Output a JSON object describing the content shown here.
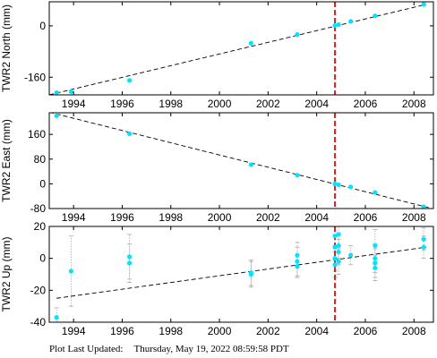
{
  "chart_data": [
    {
      "type": "scatter",
      "ylabel": "TWR2 North (mm)",
      "xlim": [
        1993.0,
        2008.8
      ],
      "ylim": [
        -215,
        75
      ],
      "x_ticks": [
        1994,
        1996,
        1998,
        2000,
        2002,
        2004,
        2006,
        2008
      ],
      "y_ticks": [
        0,
        -160
      ],
      "grid": false,
      "event_line_x": 2004.75,
      "trend": [
        [
          1993.0,
          -215
        ],
        [
          2008.5,
          67
        ]
      ],
      "points": [
        [
          1993.3,
          -208
        ],
        [
          1993.9,
          -205
        ],
        [
          1996.3,
          -170
        ],
        [
          2001.3,
          -54
        ],
        [
          2003.2,
          -27
        ],
        [
          2004.75,
          1
        ],
        [
          2004.9,
          4
        ],
        [
          2005.4,
          14
        ],
        [
          2006.4,
          31
        ],
        [
          2008.4,
          67
        ]
      ]
    },
    {
      "type": "scatter",
      "ylabel": "TWR2 East (mm)",
      "xlim": [
        1993.0,
        2008.8
      ],
      "ylim": [
        -80,
        230
      ],
      "x_ticks": [
        1994,
        1996,
        1998,
        2000,
        2002,
        2004,
        2006,
        2008
      ],
      "y_ticks": [
        160,
        80,
        0,
        -80
      ],
      "grid": false,
      "event_line_x": 2004.75,
      "trend": [
        [
          1993.0,
          232
        ],
        [
          2008.6,
          -77
        ]
      ],
      "points": [
        [
          1993.3,
          220
        ],
        [
          1996.3,
          162
        ],
        [
          2001.3,
          62
        ],
        [
          2003.2,
          28
        ],
        [
          2004.75,
          0
        ],
        [
          2004.9,
          -3
        ],
        [
          2005.4,
          -10
        ],
        [
          2006.4,
          -28
        ],
        [
          2008.4,
          -74
        ]
      ]
    },
    {
      "type": "scatter",
      "ylabel": "TWR2 Up (mm)",
      "xlim": [
        1993.0,
        2008.8
      ],
      "ylim": [
        -40,
        20
      ],
      "x_ticks": [
        1994,
        1996,
        1998,
        2000,
        2002,
        2004,
        2006,
        2008
      ],
      "y_ticks": [
        20,
        0,
        -20,
        -40
      ],
      "grid": false,
      "event_line_x": 2004.75,
      "trend": [
        [
          1993.3,
          -25
        ],
        [
          2008.5,
          7
        ]
      ],
      "points": [
        {
          "x": 1993.3,
          "y": -37,
          "err": 6
        },
        {
          "x": 1993.9,
          "y": -8,
          "err": 22
        },
        {
          "x": 1996.3,
          "y": 1,
          "err": 14
        },
        {
          "x": 1996.3,
          "y": -3,
          "err": 12
        },
        {
          "x": 2001.3,
          "y": -9,
          "err": 8
        },
        {
          "x": 2001.3,
          "y": -10,
          "err": 8
        },
        {
          "x": 2003.2,
          "y": -2,
          "err": 9
        },
        {
          "x": 2003.2,
          "y": 2,
          "err": 8
        },
        {
          "x": 2003.2,
          "y": -5,
          "err": 7
        },
        {
          "x": 2004.75,
          "y": 14,
          "err": 8
        },
        {
          "x": 2004.75,
          "y": 7,
          "err": 8
        },
        {
          "x": 2004.75,
          "y": 0,
          "err": 8
        },
        {
          "x": 2004.75,
          "y": -4,
          "err": 8
        },
        {
          "x": 2004.9,
          "y": 15,
          "err": 8
        },
        {
          "x": 2004.9,
          "y": 8,
          "err": 8
        },
        {
          "x": 2004.9,
          "y": 4,
          "err": 8
        },
        {
          "x": 2004.9,
          "y": -2,
          "err": 8
        },
        {
          "x": 2005.4,
          "y": 2,
          "err": 6
        },
        {
          "x": 2006.4,
          "y": 8,
          "err": 10
        },
        {
          "x": 2006.4,
          "y": 0,
          "err": 9
        },
        {
          "x": 2006.4,
          "y": -3,
          "err": 9
        },
        {
          "x": 2006.4,
          "y": -6,
          "err": 8
        },
        {
          "x": 2008.4,
          "y": 12,
          "err": 7
        },
        {
          "x": 2008.4,
          "y": 7,
          "err": 7
        }
      ]
    }
  ],
  "colors": {
    "points": "#00e5ff",
    "error_bars": "#aaaaaa",
    "trend_line": "#000000",
    "event_line": "#e02020",
    "axes": "#000000"
  },
  "footer": {
    "label": "Plot Last Updated:",
    "timestamp": "Thursday, May 19, 2022 08:59:58 PDT"
  }
}
